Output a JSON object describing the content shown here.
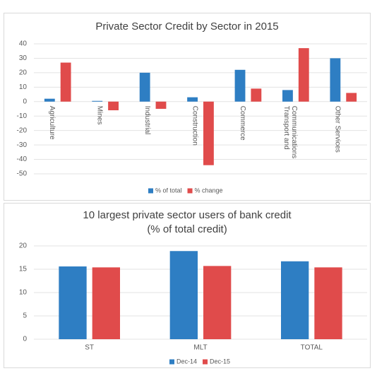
{
  "chart_data": [
    {
      "type": "bar",
      "title": "Private Sector Credit by Sector in 2015",
      "categories": [
        "Agriculture",
        "Mines",
        "Industrial",
        "Construction",
        "Commerce",
        "Transport and Communications",
        "Other Services"
      ],
      "series": [
        {
          "name": "% of total",
          "color": "#2e7ec3",
          "values": [
            2,
            0.5,
            20,
            3,
            22,
            8,
            30
          ]
        },
        {
          "name": "% change",
          "color": "#e04b4b",
          "values": [
            27,
            -6,
            -5,
            -44,
            9,
            37,
            6
          ]
        }
      ],
      "ylim": [
        -50,
        40
      ],
      "yticks": [
        -50,
        -40,
        -30,
        -20,
        -10,
        0,
        10,
        20,
        30,
        40
      ],
      "grid": true,
      "legend": "bottom"
    },
    {
      "type": "bar",
      "title": "10 largest private sector users of bank credit",
      "subtitle": "(% of total credit)",
      "categories": [
        "ST",
        "MLT",
        "TOTAL"
      ],
      "series": [
        {
          "name": "Dec-14",
          "color": "#2e7ec3",
          "values": [
            15.6,
            18.9,
            16.7
          ]
        },
        {
          "name": "Dec-15",
          "color": "#e04b4b",
          "values": [
            15.4,
            15.7,
            15.4
          ]
        }
      ],
      "ylim": [
        0,
        20
      ],
      "yticks": [
        0,
        5,
        10,
        15,
        20
      ],
      "grid": true,
      "legend": "bottom"
    }
  ]
}
